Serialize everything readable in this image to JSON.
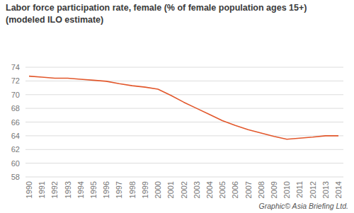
{
  "chart_data": {
    "type": "line",
    "title": "Labor force participation rate, female (% of female population ages 15+)",
    "subtitle": "(modeled ILO estimate)",
    "annotations": [
      "Graphic© Asia Briefing Ltd."
    ],
    "x": [
      1990,
      1991,
      1992,
      1993,
      1994,
      1995,
      1996,
      1997,
      1998,
      1999,
      2000,
      2001,
      2002,
      2003,
      2004,
      2005,
      2006,
      2007,
      2008,
      2009,
      2010,
      2011,
      2012,
      2013,
      2014
    ],
    "values": [
      72.7,
      72.55,
      72.4,
      72.4,
      72.25,
      72.1,
      71.95,
      71.6,
      71.3,
      71.1,
      70.8,
      69.9,
      68.9,
      68.0,
      67.1,
      66.2,
      65.5,
      64.9,
      64.4,
      63.9,
      63.5,
      63.65,
      63.8,
      64.0,
      64.0
    ],
    "color": "#e2572b",
    "xlim": [
      1990,
      2014
    ],
    "xticks": [
      1990,
      1991,
      1992,
      1993,
      1994,
      1995,
      1996,
      1997,
      1998,
      1999,
      2000,
      2001,
      2002,
      2003,
      2004,
      2005,
      2006,
      2007,
      2008,
      2009,
      2010,
      2011,
      2012,
      2013,
      2014
    ],
    "ylim": [
      58,
      74
    ],
    "yticks": [
      58,
      60,
      62,
      64,
      66,
      68,
      70,
      72,
      74
    ],
    "grid": true
  }
}
